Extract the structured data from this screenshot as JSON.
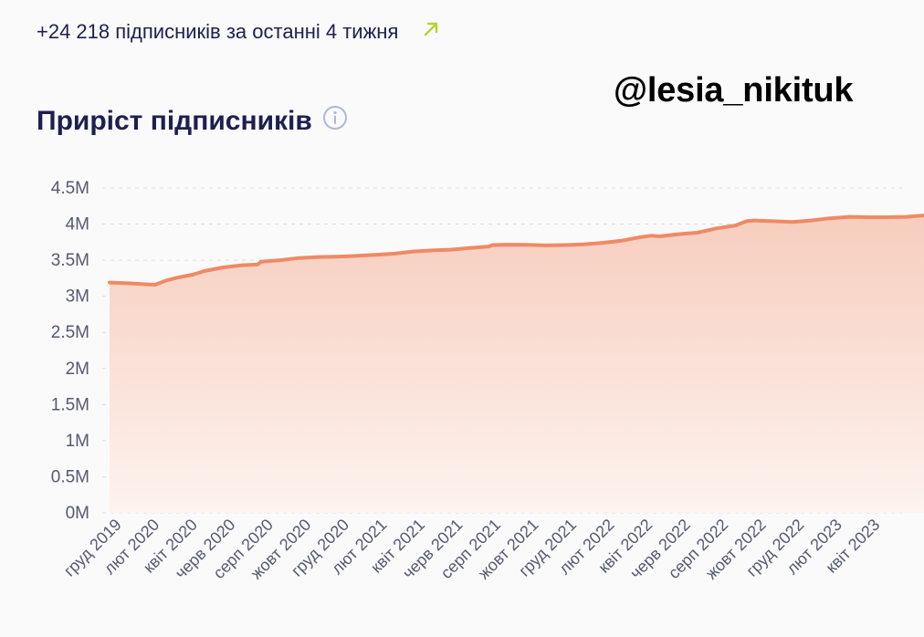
{
  "header": {
    "growth_text": "+24 218 підписників за останні 4 тижня",
    "trend_icon": "arrow-up-right-icon",
    "trend_color": "#b5d334"
  },
  "watermark": "@lesia_nikituk",
  "section": {
    "title": "Приріст підписників",
    "info_icon": "info-icon"
  },
  "colors": {
    "line": "#ef8a64",
    "area_top": "#f7cdbd",
    "area_bottom": "#fdf3ef",
    "text_dark": "#1d1f4e"
  },
  "chart_data": {
    "type": "area",
    "title": "Приріст підписників",
    "xlabel": "",
    "ylabel": "",
    "ylim": [
      0,
      4500000
    ],
    "y_ticks": [
      {
        "value": 0,
        "label": "0M"
      },
      {
        "value": 500000,
        "label": "0.5M"
      },
      {
        "value": 1000000,
        "label": "1M"
      },
      {
        "value": 1500000,
        "label": "1.5M"
      },
      {
        "value": 2000000,
        "label": "2M"
      },
      {
        "value": 2500000,
        "label": "2.5M"
      },
      {
        "value": 3000000,
        "label": "3M"
      },
      {
        "value": 3500000,
        "label": "3.5M"
      },
      {
        "value": 4000000,
        "label": "4M"
      },
      {
        "value": 4500000,
        "label": "4.5M"
      }
    ],
    "x_ticks": [
      "груд 2019",
      "лют 2020",
      "квіт 2020",
      "черв 2020",
      "серп 2020",
      "жовт 2020",
      "груд 2020",
      "лют 2021",
      "квіт 2021",
      "черв 2021",
      "серп 2021",
      "жовт 2021",
      "груд 2021",
      "лют 2022",
      "квіт 2022",
      "черв 2022",
      "серп 2022",
      "жовт 2022",
      "груд 2022",
      "лют 2023",
      "квіт 2023"
    ],
    "grid": true,
    "legend": "none",
    "series": [
      {
        "points": [
          {
            "x": 0.0,
            "y": 3190000
          },
          {
            "x": 0.5,
            "y": 3180000
          },
          {
            "x": 1.0,
            "y": 3165000
          },
          {
            "x": 1.2,
            "y": 3160000
          },
          {
            "x": 1.5,
            "y": 3220000
          },
          {
            "x": 1.8,
            "y": 3260000
          },
          {
            "x": 2.2,
            "y": 3300000
          },
          {
            "x": 2.5,
            "y": 3350000
          },
          {
            "x": 3.0,
            "y": 3400000
          },
          {
            "x": 3.5,
            "y": 3430000
          },
          {
            "x": 3.9,
            "y": 3440000
          },
          {
            "x": 4.0,
            "y": 3480000
          },
          {
            "x": 4.5,
            "y": 3500000
          },
          {
            "x": 5.0,
            "y": 3530000
          },
          {
            "x": 5.5,
            "y": 3545000
          },
          {
            "x": 6.0,
            "y": 3550000
          },
          {
            "x": 6.5,
            "y": 3560000
          },
          {
            "x": 7.0,
            "y": 3575000
          },
          {
            "x": 7.5,
            "y": 3590000
          },
          {
            "x": 8.0,
            "y": 3620000
          },
          {
            "x": 8.5,
            "y": 3635000
          },
          {
            "x": 9.0,
            "y": 3645000
          },
          {
            "x": 9.5,
            "y": 3670000
          },
          {
            "x": 10.0,
            "y": 3690000
          },
          {
            "x": 10.1,
            "y": 3710000
          },
          {
            "x": 10.5,
            "y": 3715000
          },
          {
            "x": 11.0,
            "y": 3712000
          },
          {
            "x": 11.5,
            "y": 3705000
          },
          {
            "x": 12.0,
            "y": 3710000
          },
          {
            "x": 12.5,
            "y": 3720000
          },
          {
            "x": 13.0,
            "y": 3740000
          },
          {
            "x": 13.5,
            "y": 3770000
          },
          {
            "x": 14.0,
            "y": 3820000
          },
          {
            "x": 14.3,
            "y": 3840000
          },
          {
            "x": 14.5,
            "y": 3830000
          },
          {
            "x": 15.0,
            "y": 3860000
          },
          {
            "x": 15.5,
            "y": 3880000
          },
          {
            "x": 16.0,
            "y": 3940000
          },
          {
            "x": 16.5,
            "y": 3980000
          },
          {
            "x": 16.8,
            "y": 4040000
          },
          {
            "x": 17.0,
            "y": 4050000
          },
          {
            "x": 17.5,
            "y": 4040000
          },
          {
            "x": 18.0,
            "y": 4030000
          },
          {
            "x": 18.5,
            "y": 4050000
          },
          {
            "x": 19.0,
            "y": 4080000
          },
          {
            "x": 19.5,
            "y": 4100000
          },
          {
            "x": 20.0,
            "y": 4095000
          },
          {
            "x": 20.5,
            "y": 4095000
          },
          {
            "x": 21.0,
            "y": 4100000
          },
          {
            "x": 21.5,
            "y": 4120000
          },
          {
            "x": 22.0,
            "y": 4140000
          },
          {
            "x": 22.5,
            "y": 4160000
          },
          {
            "x": 22.8,
            "y": 4162000
          }
        ]
      }
    ]
  }
}
